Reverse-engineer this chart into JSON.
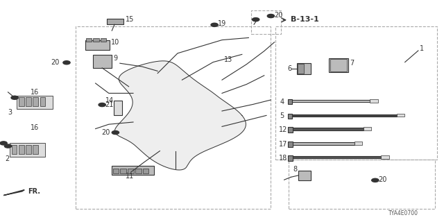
{
  "bg_color": "#ffffff",
  "line_color": "#333333",
  "diagram_code": "TYA4E0700",
  "b13_label": "B-13-1",
  "fr_label": "FR."
}
